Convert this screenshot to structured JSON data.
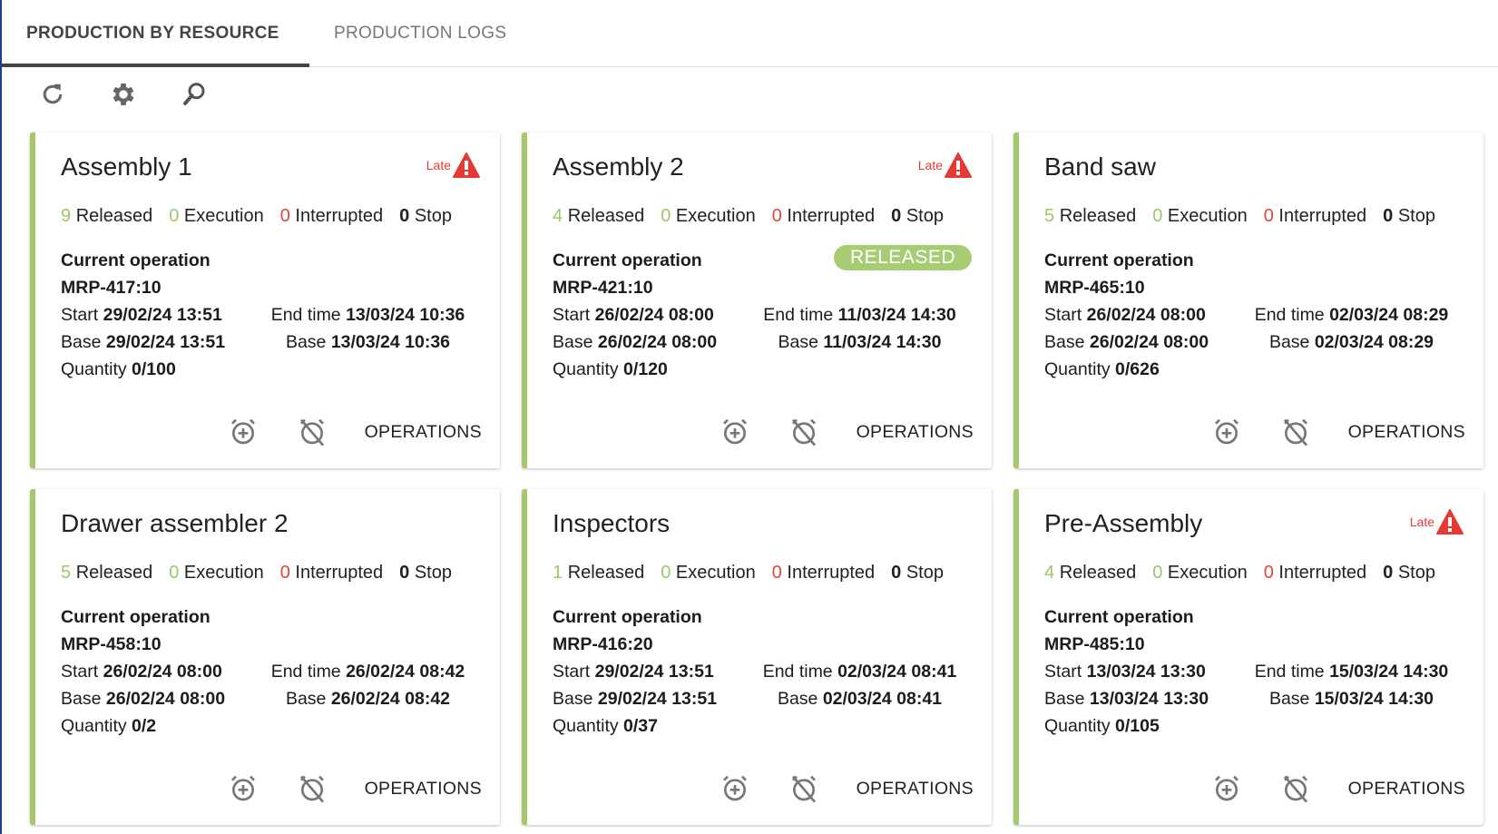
{
  "tabs": [
    {
      "label": "PRODUCTION BY RESOURCE",
      "active": true
    },
    {
      "label": "PRODUCTION LOGS",
      "active": false
    }
  ],
  "toolbar": {
    "icons": [
      "refresh-icon",
      "gear-icon",
      "search-icon"
    ]
  },
  "colors": {
    "released": "#9cc76a",
    "interrupted": "#e0463c",
    "late": "#e53935",
    "card_border": "#a5c96a"
  },
  "labels": {
    "released": "Released",
    "execution": "Execution",
    "interrupted": "Interrupted",
    "stop": "Stop",
    "current_operation": "Current operation",
    "start": "Start",
    "end_time": "End time",
    "base": "Base",
    "quantity": "Quantity",
    "operations": "OPERATIONS",
    "late": "Late"
  },
  "cards": [
    {
      "title": "Assembly 1",
      "late": true,
      "released": "9",
      "execution": "0",
      "interrupted": "0",
      "stop": "0",
      "status": "",
      "operation": "MRP-417:10",
      "start": "29/02/24 13:51",
      "end": "13/03/24 10:36",
      "base_start": "29/02/24 13:51",
      "base_end": "13/03/24 10:36",
      "quantity": "0/100"
    },
    {
      "title": "Assembly 2",
      "late": true,
      "released": "4",
      "execution": "0",
      "interrupted": "0",
      "stop": "0",
      "status": "RELEASED",
      "operation": "MRP-421:10",
      "start": "26/02/24 08:00",
      "end": "11/03/24 14:30",
      "base_start": "26/02/24 08:00",
      "base_end": "11/03/24 14:30",
      "quantity": "0/120"
    },
    {
      "title": "Band saw",
      "late": false,
      "released": "5",
      "execution": "0",
      "interrupted": "0",
      "stop": "0",
      "status": "",
      "operation": "MRP-465:10",
      "start": "26/02/24 08:00",
      "end": "02/03/24 08:29",
      "base_start": "26/02/24 08:00",
      "base_end": "02/03/24 08:29",
      "quantity": "0/626"
    },
    {
      "title": "Drawer assembler 2",
      "late": false,
      "released": "5",
      "execution": "0",
      "interrupted": "0",
      "stop": "0",
      "status": "",
      "operation": "MRP-458:10",
      "start": "26/02/24 08:00",
      "end": "26/02/24 08:42",
      "base_start": "26/02/24 08:00",
      "base_end": "26/02/24 08:42",
      "quantity": "0/2"
    },
    {
      "title": "Inspectors",
      "late": false,
      "released": "1",
      "execution": "0",
      "interrupted": "0",
      "stop": "0",
      "status": "",
      "operation": "MRP-416:20",
      "start": "29/02/24 13:51",
      "end": "02/03/24 08:41",
      "base_start": "29/02/24 13:51",
      "base_end": "02/03/24 08:41",
      "quantity": "0/37"
    },
    {
      "title": "Pre-Assembly",
      "late": true,
      "released": "4",
      "execution": "0",
      "interrupted": "0",
      "stop": "0",
      "status": "",
      "operation": "MRP-485:10",
      "start": "13/03/24 13:30",
      "end": "15/03/24 14:30",
      "base_start": "13/03/24 13:30",
      "base_end": "15/03/24 14:30",
      "quantity": "0/105"
    }
  ]
}
